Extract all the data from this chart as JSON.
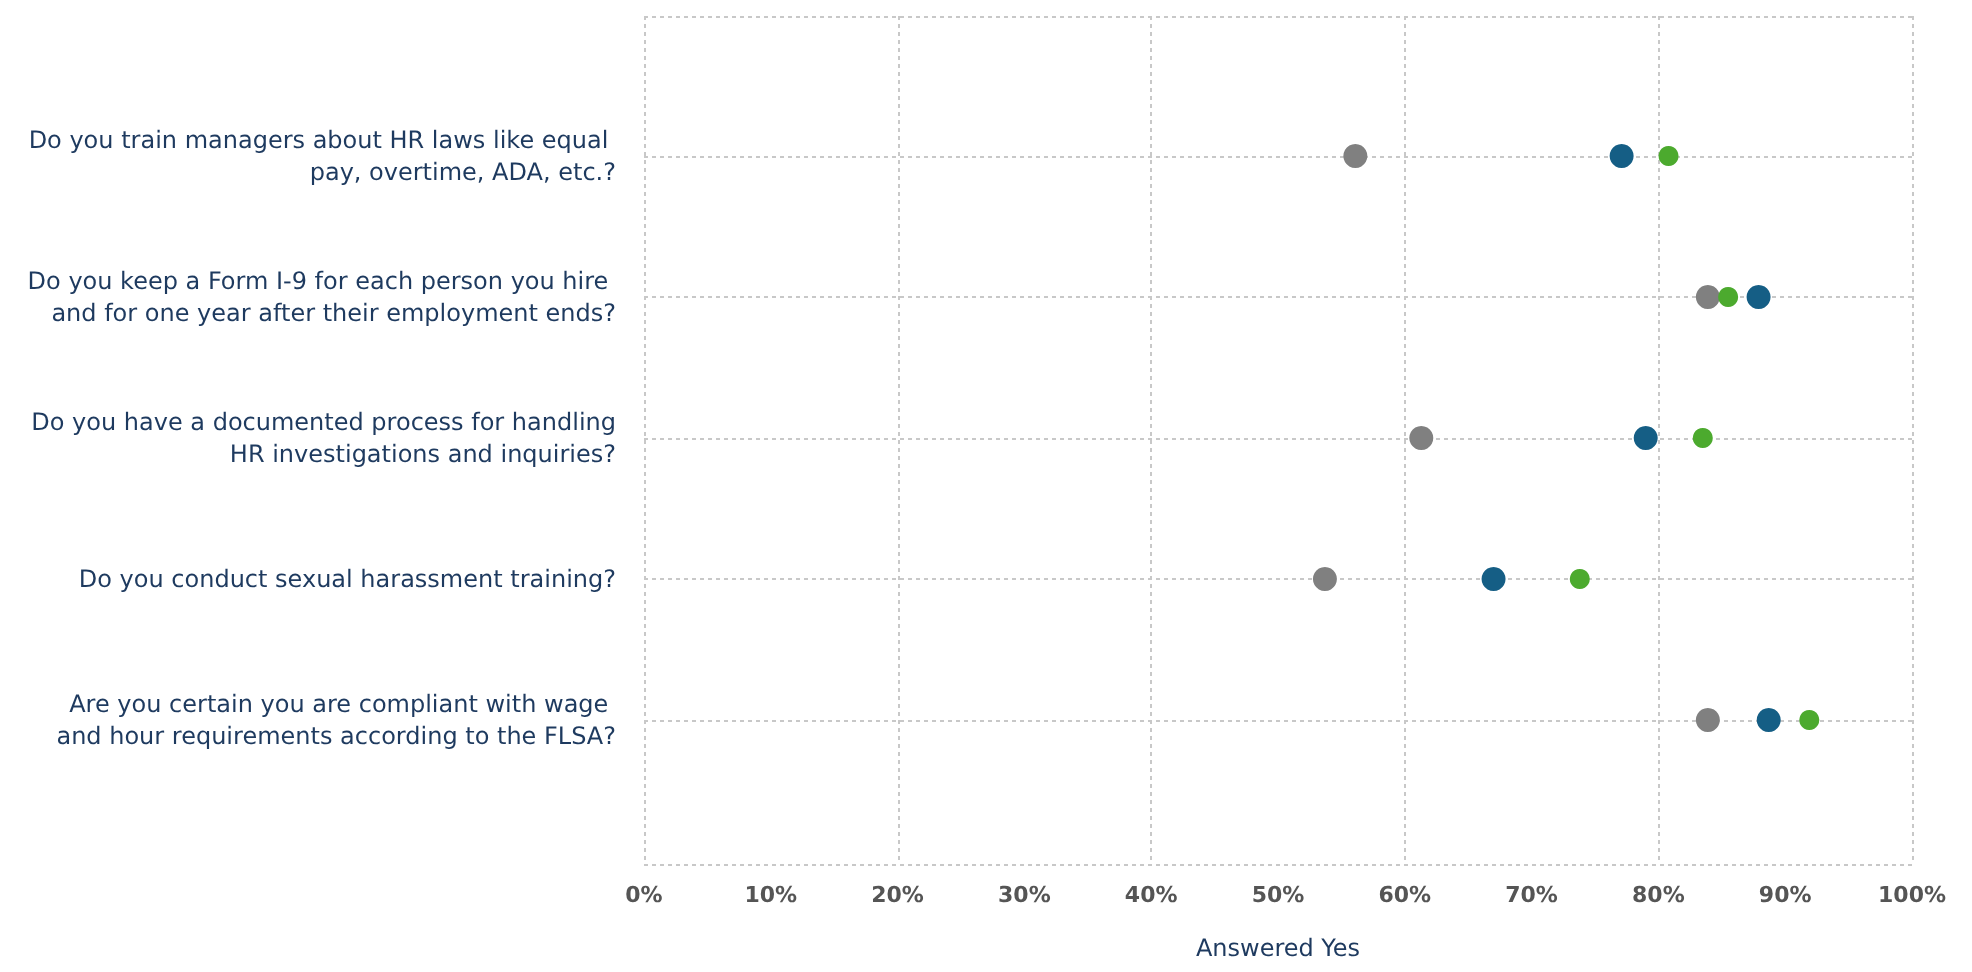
{
  "chart_data": {
    "type": "scatter",
    "xlabel": "Answered Yes",
    "categories": [
      "Do you train managers about HR laws like equal pay, overtime, ADA, etc.?",
      "Do you keep a Form I-9 for each person you hire and for one year after their employment ends?",
      "Do you have a documented process for handling HR investigations and inquiries?",
      "Do you conduct sexual harassment training?",
      "Are you certain you are compliant with wage and hour requirements according to the FLSA?"
    ],
    "series": [
      {
        "color": "#808080",
        "values": [
          56.1,
          83.9,
          61.3,
          53.7,
          83.9
        ]
      },
      {
        "color": "#155e85",
        "values": [
          77.1,
          87.9,
          79.0,
          67.0,
          88.7
        ]
      },
      {
        "color": "#4caa2e",
        "values": [
          80.8,
          85.5,
          83.5,
          73.8,
          91.9
        ]
      }
    ],
    "xlim": [
      0,
      100
    ],
    "xticks": [
      {
        "value": 0,
        "label": "0%"
      },
      {
        "value": 10,
        "label": "10%"
      },
      {
        "value": 20,
        "label": "20%"
      },
      {
        "value": 30,
        "label": "30%"
      },
      {
        "value": 40,
        "label": "40%"
      },
      {
        "value": 50,
        "label": "50%"
      },
      {
        "value": 60,
        "label": "60%"
      },
      {
        "value": 70,
        "label": "70%"
      },
      {
        "value": 80,
        "label": "80%"
      },
      {
        "value": 90,
        "label": "90%"
      },
      {
        "value": 100,
        "label": "100%"
      }
    ],
    "grid": true,
    "orientation": "horizontal",
    "marker": "circle"
  }
}
